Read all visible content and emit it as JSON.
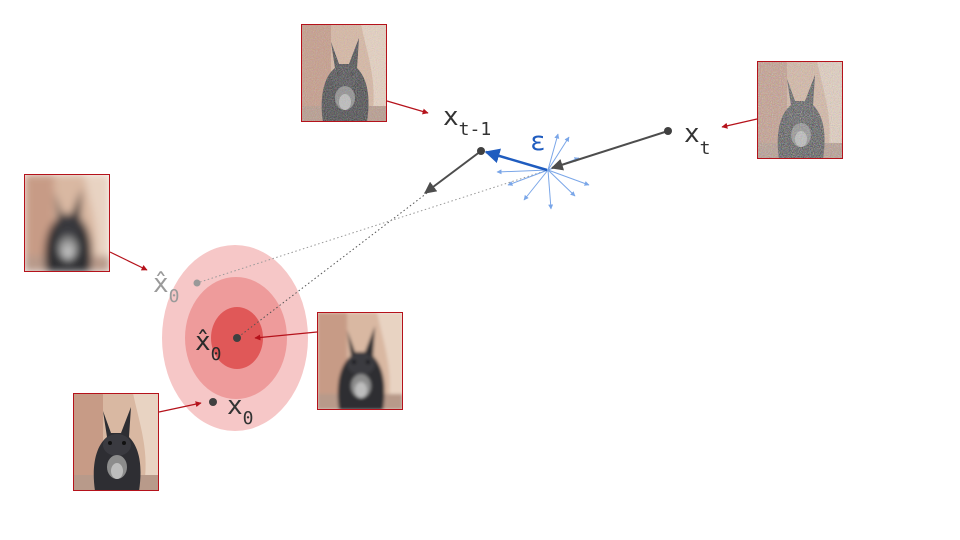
{
  "labels": {
    "xt": "x",
    "xt_sub": "t",
    "xt1": "x",
    "xt1_sub": "t-1",
    "eps": "ε",
    "x0hat_faint": "x̂",
    "x0hat_faint_sub": "0",
    "x0hat": "x̂",
    "x0hat_sub": "0",
    "x0": "x",
    "x0_sub": "0"
  },
  "images": {
    "xt_image": "noisy-rabbit-photo",
    "xt1_image": "partially-denoised-rabbit-photo",
    "x0hat_faint_image": "blurry-rabbit-photo",
    "x0hat_image": "slightly-blurry-rabbit-photo",
    "x0_image": "clean-rabbit-photo"
  },
  "colors": {
    "arrow_dark": "#4d4d4d",
    "eps_blue": "#1f5cbf",
    "light_blue": "#7aa6e8",
    "frame_red": "#b5121b",
    "ring_outer": "#f6c7c7",
    "ring_mid": "#ee9b9b",
    "ring_inner": "#e05858"
  }
}
